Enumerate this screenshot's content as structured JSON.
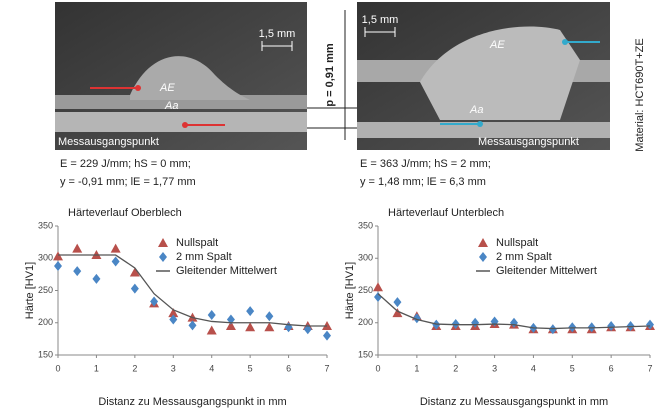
{
  "micrographs": [
    {
      "scale": "1,5 mm",
      "area_top": "AE",
      "area_bottom": "Aa",
      "point": "Messausgangspunkt",
      "caption": [
        "E = 229 J/mm; hS = 0 mm;",
        "y = -0,91 mm; lE = 1,77 mm"
      ]
    },
    {
      "scale": "1,5 mm",
      "area_top": "AE",
      "area_bottom": "Aa",
      "point": "Messausgangspunkt",
      "caption": [
        "E = 363 J/mm; hS = 2 mm;",
        "y = 1,48 mm; lE = 6,3 mm"
      ]
    }
  ],
  "gap_label": "p = 0,91 mm",
  "material": "Material: HCT690T+ZE",
  "chart_data": [
    {
      "type": "line_scatter",
      "title": "Härteverlauf Oberblech",
      "x_label": "Distanz zu Messausgangspunkt in mm",
      "y_label": "Härte [HV1]",
      "x": [
        0,
        0.5,
        1,
        1.5,
        2,
        2.5,
        3,
        3.5,
        4,
        4.5,
        5,
        5.5,
        6,
        6.5,
        7
      ],
      "series": [
        {
          "name": "Nullspalt",
          "color": "#b8504b",
          "marker": "triangle",
          "values": [
            303,
            315,
            305,
            315,
            278,
            230,
            215,
            208,
            188,
            195,
            193,
            193,
            195,
            195,
            195
          ]
        },
        {
          "name": "2 mm Spalt",
          "color": "#4a86c5",
          "marker": "diamond",
          "values": [
            288,
            280,
            268,
            295,
            253,
            233,
            205,
            196,
            212,
            205,
            218,
            210,
            193,
            190,
            180
          ]
        },
        {
          "name": "Gleitender Mittelwert",
          "color": "#555555",
          "marker": "line",
          "values": [
            305,
            305,
            305,
            305,
            285,
            245,
            220,
            208,
            202,
            200,
            200,
            200,
            197,
            195,
            195
          ]
        }
      ],
      "xlim": [
        0,
        7
      ],
      "xticks": [
        0,
        1,
        2,
        3,
        4,
        5,
        6,
        7
      ],
      "ylim": [
        150,
        350
      ],
      "yticks": [
        150,
        200,
        250,
        300,
        350
      ]
    },
    {
      "type": "line_scatter",
      "title": "Härteverlauf Unterblech",
      "x_label": "Distanz zu Messausgangspunkt in mm",
      "y_label": "Härte [HV1]",
      "x": [
        0,
        0.5,
        1,
        1.5,
        2,
        2.5,
        3,
        3.5,
        4,
        4.5,
        5,
        5.5,
        6,
        6.5,
        7
      ],
      "series": [
        {
          "name": "Nullspalt",
          "color": "#b8504b",
          "marker": "triangle",
          "values": [
            255,
            215,
            210,
            195,
            195,
            195,
            198,
            197,
            190,
            190,
            190,
            190,
            193,
            193,
            195
          ]
        },
        {
          "name": "2 mm Spalt",
          "color": "#4a86c5",
          "marker": "diamond",
          "values": [
            240,
            232,
            207,
            197,
            198,
            200,
            202,
            200,
            192,
            190,
            193,
            193,
            195,
            195,
            197
          ]
        },
        {
          "name": "Gleitender Mittelwert",
          "color": "#555555",
          "marker": "line",
          "values": [
            245,
            218,
            205,
            198,
            197,
            197,
            198,
            197,
            192,
            191,
            192,
            192,
            193,
            194,
            195
          ]
        }
      ],
      "xlim": [
        0,
        7
      ],
      "xticks": [
        0,
        1,
        2,
        3,
        4,
        5,
        6,
        7
      ],
      "ylim": [
        150,
        350
      ],
      "yticks": [
        150,
        200,
        250,
        300,
        350
      ]
    }
  ]
}
